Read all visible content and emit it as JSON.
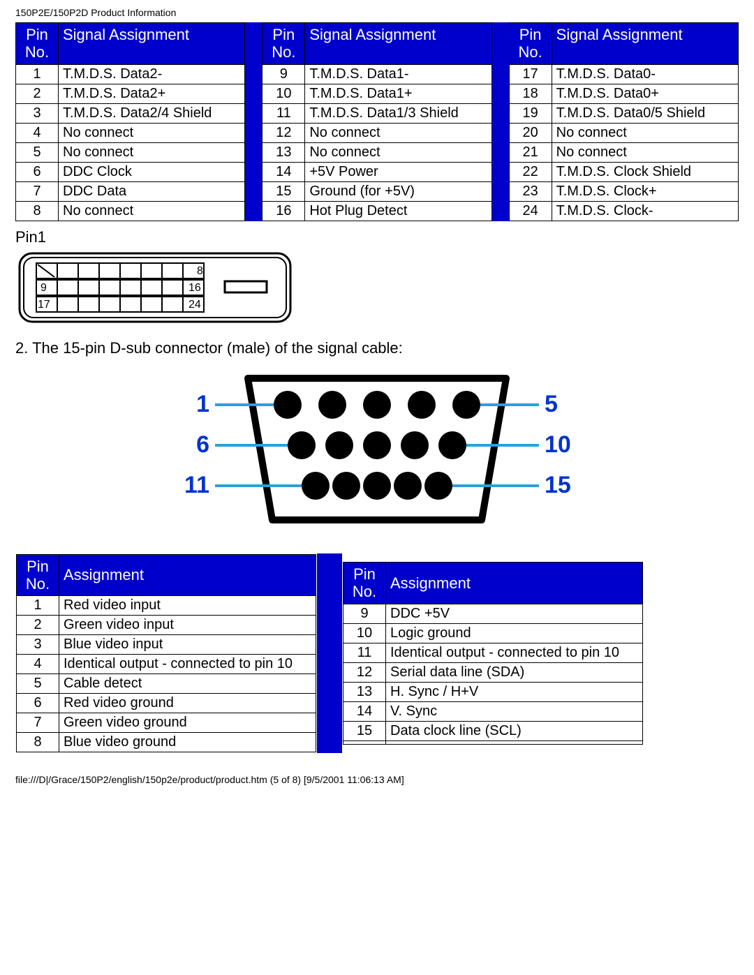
{
  "header": "150P2E/150P2D Product Information",
  "table1": {
    "head_pin": "Pin\nNo.",
    "head_sig": "Signal Assignment",
    "cols": [
      [
        {
          "p": "1",
          "s": "T.M.D.S. Data2-"
        },
        {
          "p": "2",
          "s": "T.M.D.S. Data2+"
        },
        {
          "p": "3",
          "s": "T.M.D.S. Data2/4 Shield"
        },
        {
          "p": "4",
          "s": "No connect"
        },
        {
          "p": "5",
          "s": "No connect"
        },
        {
          "p": "6",
          "s": "DDC Clock"
        },
        {
          "p": "7",
          "s": "DDC Data"
        },
        {
          "p": "8",
          "s": "No connect"
        }
      ],
      [
        {
          "p": "9",
          "s": "T.M.D.S. Data1-"
        },
        {
          "p": "10",
          "s": "T.M.D.S. Data1+"
        },
        {
          "p": "11",
          "s": "T.M.D.S. Data1/3 Shield"
        },
        {
          "p": "12",
          "s": "No connect"
        },
        {
          "p": "13",
          "s": "No connect"
        },
        {
          "p": "14",
          "s": "+5V Power"
        },
        {
          "p": "15",
          "s": "Ground (for +5V)"
        },
        {
          "p": "16",
          "s": "Hot Plug Detect"
        }
      ],
      [
        {
          "p": "17",
          "s": "T.M.D.S. Data0-"
        },
        {
          "p": "18",
          "s": "T.M.D.S. Data0+"
        },
        {
          "p": "19",
          "s": "T.M.D.S. Data0/5 Shield"
        },
        {
          "p": "20",
          "s": "No connect"
        },
        {
          "p": "21",
          "s": "No connect"
        },
        {
          "p": "22",
          "s": "T.M.D.S. Clock Shield"
        },
        {
          "p": "23",
          "s": "T.M.D.S. Clock+"
        },
        {
          "p": "24",
          "s": "T.M.D.S. Clock-"
        }
      ]
    ]
  },
  "pin1_label": "Pin1",
  "dvi": {
    "labels": {
      "r1": "8",
      "r2a": "9",
      "r2b": "16",
      "r3a": "17",
      "r3b": "24"
    },
    "stroke": "#000000",
    "fill": "#ffffff"
  },
  "vga_desc": "2. The 15-pin D-sub connector (male) of the signal cable:",
  "vga": {
    "labels_left": [
      "1",
      "6",
      "11"
    ],
    "labels_right": [
      "5",
      "10",
      "15"
    ],
    "label_color": "#0033cc",
    "label_fontsize": 34,
    "line_color": "#2aa0de",
    "body_fill": "#000000",
    "pin_fill": "#000000",
    "outline": "#000000",
    "background": "#ffffff"
  },
  "table2": {
    "head_pin": "Pin\nNo.",
    "head_sig": "Assignment",
    "cols": [
      [
        {
          "p": "1",
          "s": "Red video input"
        },
        {
          "p": "2",
          "s": "Green video input"
        },
        {
          "p": "3",
          "s": "Blue video input"
        },
        {
          "p": "4",
          "s": "Identical output - connected to pin 10"
        },
        {
          "p": "5",
          "s": "Cable detect"
        },
        {
          "p": "6",
          "s": "Red video ground"
        },
        {
          "p": "7",
          "s": "Green video ground"
        },
        {
          "p": "8",
          "s": "Blue video ground"
        }
      ],
      [
        {
          "p": "9",
          "s": "DDC +5V"
        },
        {
          "p": "10",
          "s": "Logic ground"
        },
        {
          "p": "11",
          "s": "Identical output - connected to pin 10"
        },
        {
          "p": "12",
          "s": "Serial data line (SDA)"
        },
        {
          "p": "13",
          "s": "H. Sync / H+V"
        },
        {
          "p": "14",
          "s": "V. Sync"
        },
        {
          "p": "15",
          "s": "Data clock line (SCL)"
        },
        {
          "p": "",
          "s": ""
        }
      ]
    ]
  },
  "footer": "file:///D|/Grace/150P2/english/150p2e/product/product.htm (5 of 8) [9/5/2001 11:06:13 AM]"
}
